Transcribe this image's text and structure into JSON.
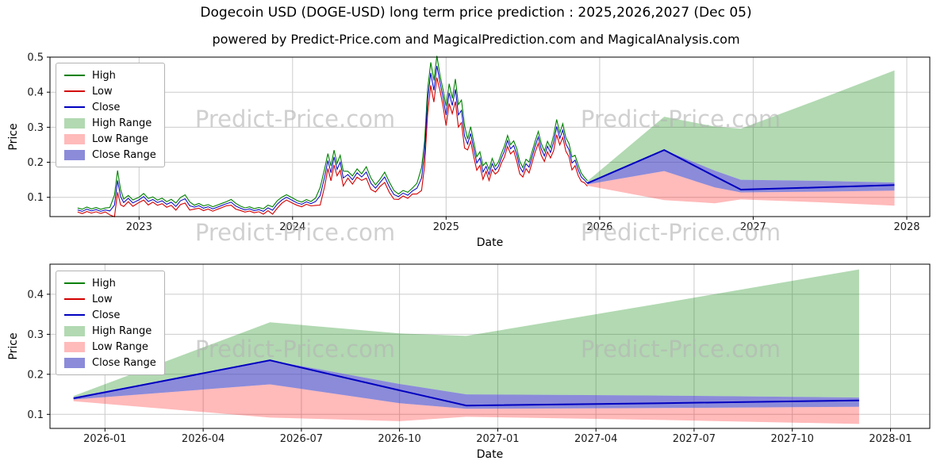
{
  "page": {
    "title": "Dogecoin USD (DOGE-USD) long term price prediction : 2025,2026,2027 (Dec 05)",
    "subtitle": "powered by Predict-Price.com and MagicalPrediction.com and MagicalAnalysis.com",
    "watermark_text": "Predict-Price.com"
  },
  "colors": {
    "high_line": "#008000",
    "low_line": "#d40000",
    "close_line": "#0000c0",
    "high_range_fill": "#0080004d",
    "low_range_fill": "#ff000045",
    "close_range_fill": "#3d3dc299",
    "grid": "#cccccc",
    "spine": "#000000",
    "tick_label": "#1a1a1a",
    "watermark": "#b4b4b4"
  },
  "chart_data": {
    "type": "line",
    "title": "Dogecoin USD (DOGE-USD) long term price prediction : 2025,2026,2027 (Dec 05)",
    "legend": [
      {
        "label": "High",
        "swatch": "line",
        "color": "#008000"
      },
      {
        "label": "Low",
        "swatch": "line",
        "color": "#d40000"
      },
      {
        "label": "Close",
        "swatch": "line",
        "color": "#0000c0"
      },
      {
        "label": "High Range",
        "swatch": "patch",
        "color": "#0080004d"
      },
      {
        "label": "Low Range",
        "swatch": "patch",
        "color": "#ff000045"
      },
      {
        "label": "Close Range",
        "swatch": "patch",
        "color": "#3d3dc299"
      }
    ],
    "charts": [
      {
        "name": "history-with-forecast",
        "xlabel": "Date",
        "ylabel": "Price",
        "xlim": [
          2022.42,
          2028.15
        ],
        "ylim": [
          0.045,
          0.5
        ],
        "xtick_values": [
          2023,
          2024,
          2025,
          2026,
          2027,
          2028
        ],
        "xtick_labels": [
          "2023",
          "2024",
          "2025",
          "2026",
          "2027",
          "2028"
        ],
        "ytick_values": [
          0.1,
          0.2,
          0.3,
          0.4,
          0.5
        ],
        "ytick_labels": [
          "0.1",
          "0.2",
          "0.3",
          "0.4",
          "0.5"
        ],
        "grid": true,
        "legend_position": "upper-left",
        "show_history": true,
        "show_prediction": true
      },
      {
        "name": "forecast-detail",
        "xlabel": "Date",
        "ylabel": "Price",
        "xlim": [
          2025.86,
          2028.1
        ],
        "ylim": [
          0.065,
          0.475
        ],
        "xtick_values": [
          2026.0,
          2026.25,
          2026.5,
          2026.75,
          2027.0,
          2027.25,
          2027.5,
          2027.75,
          2028.0
        ],
        "xtick_labels": [
          "2026-01",
          "2026-04",
          "2026-07",
          "2026-10",
          "2027-01",
          "2027-04",
          "2027-07",
          "2027-10",
          "2028-01"
        ],
        "ytick_values": [
          0.1,
          0.2,
          0.3,
          0.4
        ],
        "ytick_labels": [
          "0.1",
          "0.2",
          "0.3",
          "0.4"
        ],
        "grid": true,
        "legend_position": "upper-left",
        "show_history": false,
        "show_prediction": true
      }
    ],
    "history": {
      "series_name": "Close",
      "points": [
        [
          2022.6,
          0.064
        ],
        [
          2022.63,
          0.06
        ],
        [
          2022.66,
          0.066
        ],
        [
          2022.69,
          0.061
        ],
        [
          2022.72,
          0.065
        ],
        [
          2022.75,
          0.06
        ],
        [
          2022.78,
          0.064
        ],
        [
          2022.81,
          0.061
        ],
        [
          2022.84,
          0.078
        ],
        [
          2022.86,
          0.148
        ],
        [
          2022.88,
          0.102
        ],
        [
          2022.9,
          0.085
        ],
        [
          2022.93,
          0.097
        ],
        [
          2022.96,
          0.084
        ],
        [
          2023.0,
          0.093
        ],
        [
          2023.03,
          0.102
        ],
        [
          2023.06,
          0.088
        ],
        [
          2023.09,
          0.094
        ],
        [
          2023.12,
          0.085
        ],
        [
          2023.15,
          0.09
        ],
        [
          2023.18,
          0.08
        ],
        [
          2023.21,
          0.086
        ],
        [
          2023.24,
          0.074
        ],
        [
          2023.27,
          0.09
        ],
        [
          2023.3,
          0.096
        ],
        [
          2023.33,
          0.076
        ],
        [
          2023.36,
          0.072
        ],
        [
          2023.39,
          0.076
        ],
        [
          2023.42,
          0.069
        ],
        [
          2023.45,
          0.073
        ],
        [
          2023.48,
          0.067
        ],
        [
          2023.51,
          0.072
        ],
        [
          2023.54,
          0.077
        ],
        [
          2023.57,
          0.082
        ],
        [
          2023.6,
          0.086
        ],
        [
          2023.63,
          0.075
        ],
        [
          2023.66,
          0.069
        ],
        [
          2023.69,
          0.064
        ],
        [
          2023.72,
          0.067
        ],
        [
          2023.75,
          0.062
        ],
        [
          2023.78,
          0.065
        ],
        [
          2023.81,
          0.06
        ],
        [
          2023.84,
          0.07
        ],
        [
          2023.87,
          0.063
        ],
        [
          2023.9,
          0.08
        ],
        [
          2023.93,
          0.092
        ],
        [
          2023.96,
          0.1
        ],
        [
          2024.0,
          0.091
        ],
        [
          2024.03,
          0.084
        ],
        [
          2024.06,
          0.08
        ],
        [
          2024.09,
          0.087
        ],
        [
          2024.12,
          0.082
        ],
        [
          2024.15,
          0.088
        ],
        [
          2024.18,
          0.105
        ],
        [
          2024.21,
          0.16
        ],
        [
          2024.23,
          0.205
        ],
        [
          2024.25,
          0.17
        ],
        [
          2024.27,
          0.215
        ],
        [
          2024.29,
          0.18
        ],
        [
          2024.31,
          0.2
        ],
        [
          2024.33,
          0.155
        ],
        [
          2024.36,
          0.165
        ],
        [
          2024.39,
          0.15
        ],
        [
          2024.42,
          0.17
        ],
        [
          2024.45,
          0.158
        ],
        [
          2024.48,
          0.172
        ],
        [
          2024.51,
          0.14
        ],
        [
          2024.54,
          0.126
        ],
        [
          2024.57,
          0.142
        ],
        [
          2024.6,
          0.158
        ],
        [
          2024.63,
          0.13
        ],
        [
          2024.66,
          0.108
        ],
        [
          2024.69,
          0.102
        ],
        [
          2024.72,
          0.112
        ],
        [
          2024.75,
          0.106
        ],
        [
          2024.78,
          0.118
        ],
        [
          2024.81,
          0.126
        ],
        [
          2024.84,
          0.155
        ],
        [
          2024.86,
          0.23
        ],
        [
          2024.88,
          0.38
        ],
        [
          2024.9,
          0.455
        ],
        [
          2024.92,
          0.405
        ],
        [
          2024.94,
          0.475
        ],
        [
          2024.96,
          0.428
        ],
        [
          2024.98,
          0.385
        ],
        [
          2025.0,
          0.335
        ],
        [
          2025.02,
          0.398
        ],
        [
          2025.04,
          0.362
        ],
        [
          2025.06,
          0.408
        ],
        [
          2025.08,
          0.335
        ],
        [
          2025.1,
          0.348
        ],
        [
          2025.12,
          0.275
        ],
        [
          2025.14,
          0.252
        ],
        [
          2025.16,
          0.282
        ],
        [
          2025.18,
          0.238
        ],
        [
          2025.2,
          0.198
        ],
        [
          2025.22,
          0.212
        ],
        [
          2025.24,
          0.172
        ],
        [
          2025.26,
          0.188
        ],
        [
          2025.28,
          0.165
        ],
        [
          2025.3,
          0.196
        ],
        [
          2025.32,
          0.178
        ],
        [
          2025.34,
          0.188
        ],
        [
          2025.36,
          0.212
        ],
        [
          2025.38,
          0.232
        ],
        [
          2025.4,
          0.262
        ],
        [
          2025.42,
          0.238
        ],
        [
          2025.44,
          0.248
        ],
        [
          2025.46,
          0.222
        ],
        [
          2025.48,
          0.186
        ],
        [
          2025.5,
          0.172
        ],
        [
          2025.52,
          0.196
        ],
        [
          2025.54,
          0.186
        ],
        [
          2025.56,
          0.216
        ],
        [
          2025.58,
          0.246
        ],
        [
          2025.6,
          0.272
        ],
        [
          2025.62,
          0.238
        ],
        [
          2025.64,
          0.218
        ],
        [
          2025.66,
          0.246
        ],
        [
          2025.68,
          0.228
        ],
        [
          2025.7,
          0.256
        ],
        [
          2025.72,
          0.302
        ],
        [
          2025.74,
          0.268
        ],
        [
          2025.76,
          0.292
        ],
        [
          2025.78,
          0.252
        ],
        [
          2025.8,
          0.236
        ],
        [
          2025.82,
          0.198
        ],
        [
          2025.84,
          0.206
        ],
        [
          2025.86,
          0.178
        ],
        [
          2025.88,
          0.158
        ],
        [
          2025.9,
          0.15
        ],
        [
          2025.92,
          0.14
        ]
      ]
    },
    "prediction": {
      "x": [
        2025.92,
        2026.42,
        2026.75,
        2026.92,
        2027.42,
        2027.92
      ],
      "close": [
        0.14,
        0.235,
        0.16,
        0.122,
        0.128,
        0.135
      ],
      "high_band_upper": [
        0.146,
        0.33,
        0.302,
        0.296,
        0.378,
        0.462
      ],
      "band_mid_upper": [
        0.143,
        0.235,
        0.176,
        0.15,
        0.147,
        0.142
      ],
      "band_mid_lower": [
        0.137,
        0.175,
        0.128,
        0.114,
        0.116,
        0.119
      ],
      "low_band_lower": [
        0.133,
        0.092,
        0.083,
        0.094,
        0.086,
        0.076
      ]
    }
  }
}
